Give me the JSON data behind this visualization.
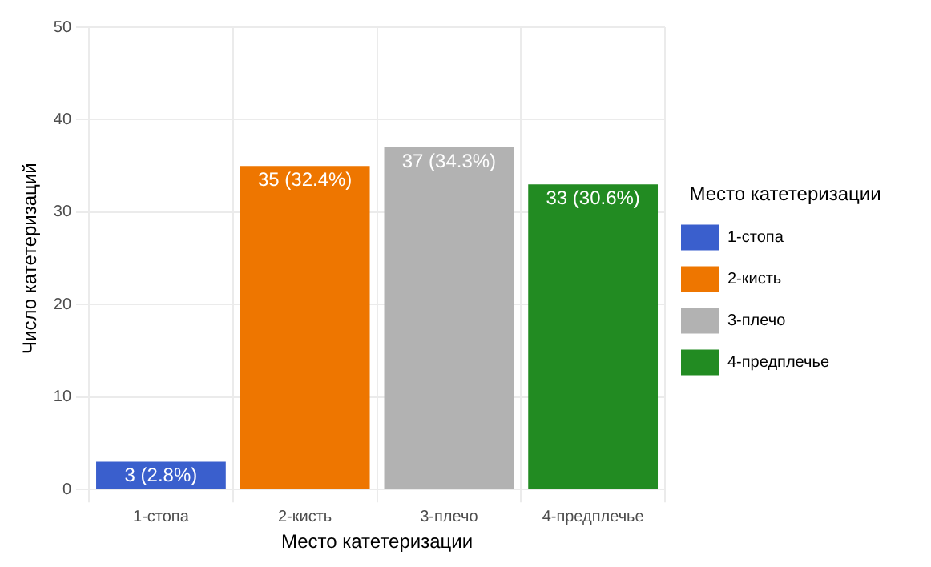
{
  "chart_data": {
    "type": "bar",
    "xlabel": "Место катетеризации",
    "ylabel": "Число катетеризаций",
    "legend_title": "Место катетеризации",
    "categories": [
      "1-стопа",
      "2-кисть",
      "3-плечо",
      "4-предплечье"
    ],
    "series": [
      {
        "name": "1-стопа",
        "color": "#3a5fcd",
        "values": [
          3,
          null,
          null,
          null
        ],
        "value_labels": [
          "3 (2.8%)",
          null,
          null,
          null
        ]
      },
      {
        "name": "2-кисть",
        "color": "#ee7600",
        "values": [
          null,
          35,
          null,
          null
        ],
        "value_labels": [
          null,
          "35 (32.4%)",
          null,
          null
        ]
      },
      {
        "name": "3-плечо",
        "color": "#b2b2b2",
        "values": [
          null,
          null,
          37,
          null
        ],
        "value_labels": [
          null,
          null,
          "37 (34.3%)",
          null
        ]
      },
      {
        "name": "4-предплечье",
        "color": "#228b22",
        "values": [
          null,
          null,
          null,
          33
        ],
        "value_labels": [
          null,
          null,
          null,
          "33 (30.6%)"
        ]
      }
    ],
    "ylim": [
      0,
      50
    ],
    "yticks": [
      0,
      10,
      20,
      30,
      40,
      50
    ],
    "grid": true,
    "legend": "right"
  }
}
